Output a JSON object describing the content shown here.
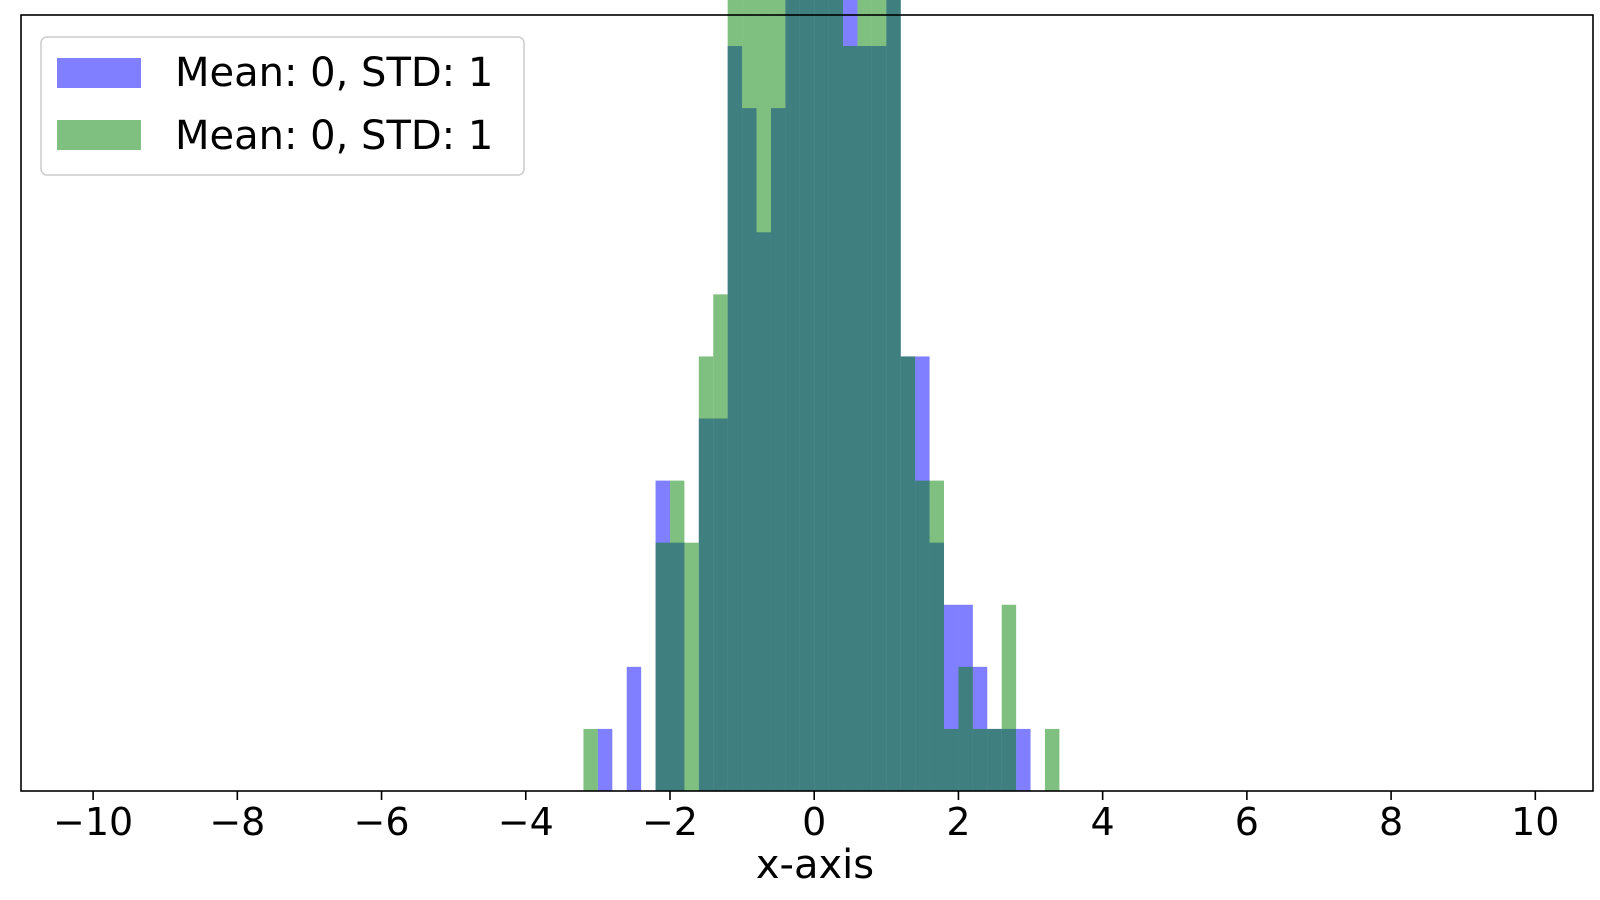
{
  "chart_data": {
    "type": "bar",
    "subtype": "overlapping-histogram",
    "title": "",
    "xlabel": "x-axis",
    "ylabel": "",
    "xlim": [
      -11,
      10.8
    ],
    "ylim": [
      0,
      12.5
    ],
    "xticks": [
      -10,
      -8,
      -6,
      -4,
      -2,
      0,
      2,
      4,
      6,
      8,
      10
    ],
    "xtick_labels": [
      "−10",
      "−8",
      "−6",
      "−4",
      "−2",
      "0",
      "2",
      "4",
      "6",
      "8",
      "10"
    ],
    "yticks_visible": false,
    "grid": false,
    "legend": {
      "placement": "top-left"
    },
    "bin_width": 0.2,
    "series": [
      {
        "name": "Mean: 0, STD: 1",
        "color": "#0000ff",
        "opacity": 0.5,
        "bin_starts": [
          -3.0,
          -2.6,
          -2.2,
          -2.0,
          -1.6,
          -1.4,
          -1.2,
          -1.0,
          -0.8,
          -0.6,
          -0.4,
          -0.2,
          0.0,
          0.2,
          0.4,
          0.6,
          0.8,
          1.0,
          1.2,
          1.4,
          1.6,
          1.8,
          2.0,
          2.2,
          2.4,
          2.6,
          2.8
        ],
        "counts": [
          1,
          2,
          5,
          4,
          6,
          6,
          12,
          11,
          9,
          11,
          22,
          24,
          17,
          16,
          23,
          12,
          12,
          15,
          7,
          7,
          4,
          3,
          3,
          2,
          1,
          1,
          1
        ]
      },
      {
        "name": "Mean: 0, STD: 1",
        "color": "#008000",
        "opacity": 0.5,
        "bin_starts": [
          -3.2,
          -2.2,
          -2.0,
          -1.8,
          -1.6,
          -1.4,
          -1.2,
          -1.0,
          -0.8,
          -0.6,
          -0.4,
          -0.2,
          0.0,
          0.2,
          0.4,
          0.6,
          0.8,
          1.0,
          1.2,
          1.4,
          1.6,
          1.8,
          2.0,
          2.2,
          2.4,
          2.6,
          3.2
        ],
        "counts": [
          1,
          4,
          5,
          4,
          7,
          8,
          13,
          16,
          20,
          18,
          22,
          18,
          16,
          24,
          12,
          14,
          24,
          13,
          7,
          5,
          5,
          1,
          2,
          1,
          1,
          3,
          1
        ]
      }
    ]
  }
}
